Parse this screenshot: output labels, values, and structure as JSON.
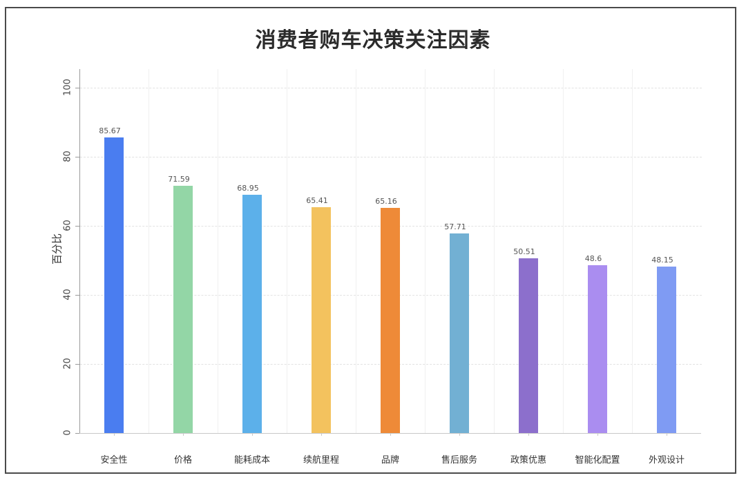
{
  "chart_data": {
    "type": "bar",
    "title": "消费者购车决策关注因素",
    "xlabel": "",
    "ylabel": "百分比",
    "ylim": [
      0,
      100
    ],
    "yticks": [
      "0",
      "20",
      "40",
      "60",
      "80",
      "100"
    ],
    "grid": true,
    "legend": null,
    "categories": [
      "安全性",
      "价格",
      "能耗成本",
      "续航里程",
      "品牌",
      "售后服务",
      "政策优惠",
      "智能化配置",
      "外观设计"
    ],
    "values": [
      85.67,
      71.59,
      68.95,
      65.41,
      65.16,
      57.71,
      50.51,
      48.6,
      48.15
    ],
    "value_labels": [
      "85.67",
      "71.59",
      "68.95",
      "65.41",
      "65.16",
      "57.71",
      "50.51",
      "48.6",
      "48.15"
    ],
    "colors": [
      "#4a7df0",
      "#93d6a6",
      "#5cb0ea",
      "#f3c25e",
      "#ee8a38",
      "#72b0d3",
      "#8c6fcc",
      "#aa8df0",
      "#7f9bf3"
    ]
  }
}
